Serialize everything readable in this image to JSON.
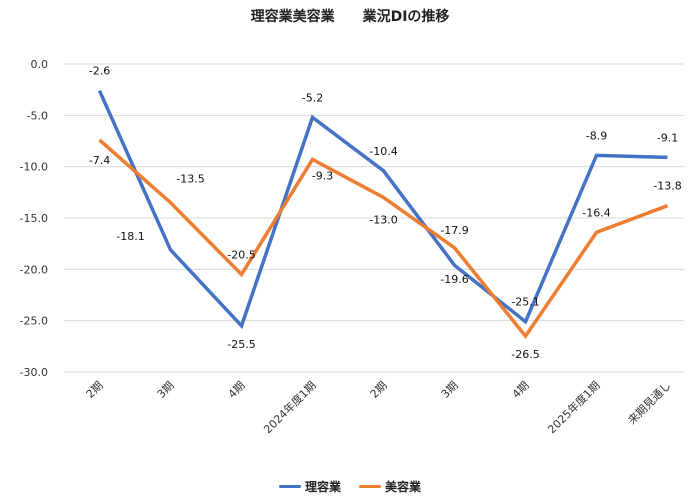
{
  "chart_data": {
    "type": "line",
    "title": "理容業美容業　　業況DIの推移",
    "xlabel": "",
    "ylabel": "",
    "ylim": [
      -30.0,
      0.0
    ],
    "yticks": [
      "0.0",
      "-5.0",
      "-10.0",
      "-15.0",
      "-20.0",
      "-25.0",
      "-30.0"
    ],
    "grid": true,
    "legend_position": "bottom",
    "categories": [
      "2期",
      "3期",
      "4期",
      "2024年度1期",
      "2期",
      "3期",
      "4期",
      "2025年度1期",
      "来期見通し"
    ],
    "series": [
      {
        "name": "理容業",
        "color": "#4472C4",
        "values": [
          -2.6,
          -18.1,
          -25.5,
          -5.2,
          -10.4,
          -19.6,
          -25.1,
          -8.9,
          -9.1
        ]
      },
      {
        "name": "美容業",
        "color": "#ED7D31",
        "values": [
          -7.4,
          -13.5,
          -20.5,
          -9.3,
          -13.0,
          -17.9,
          -26.5,
          -16.4,
          -13.8
        ]
      }
    ]
  },
  "legend": [
    {
      "label": "理容業",
      "color": "#4472C4"
    },
    {
      "label": "美容業",
      "color": "#ED7D31"
    }
  ]
}
